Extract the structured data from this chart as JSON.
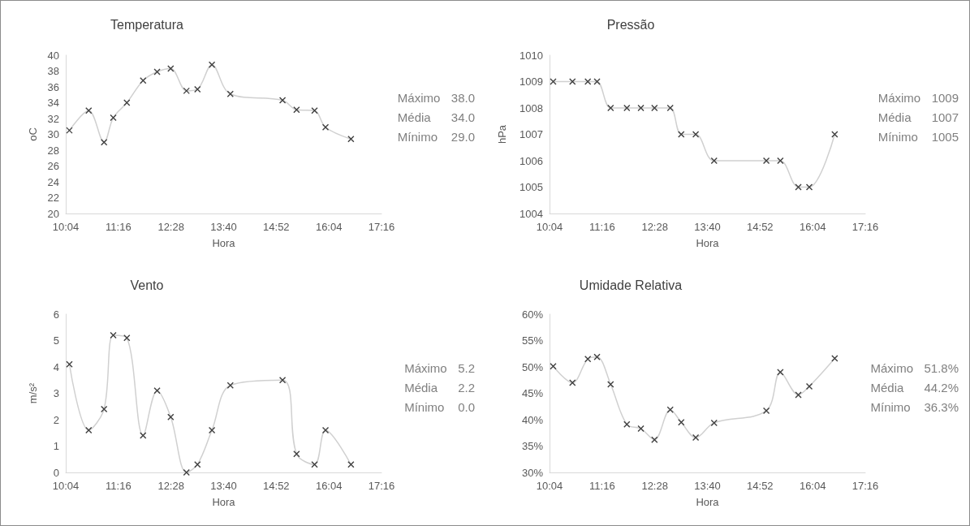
{
  "chart_data": [
    {
      "type": "line",
      "title": "Temperatura",
      "xlabel": "Hora",
      "ylabel": "oC",
      "x": [
        10.15,
        10.59,
        10.94,
        11.15,
        11.46,
        11.83,
        12.15,
        12.46,
        12.82,
        13.07,
        13.4,
        13.82,
        15.01,
        15.33,
        15.74,
        15.99,
        16.57
      ],
      "series": [
        {
          "color": "#d0d0d0",
          "values": [
            30.5,
            33.0,
            29.0,
            32.1,
            34.0,
            36.8,
            37.9,
            38.3,
            35.5,
            35.7,
            38.8,
            35.1,
            34.3,
            33.1,
            33.0,
            30.9,
            29.4
          ]
        }
      ],
      "xlim": [
        10.0667,
        17.2667
      ],
      "xticks": [
        {
          "value": 10.0667,
          "label": "10:04"
        },
        {
          "value": 11.2667,
          "label": "11:16"
        },
        {
          "value": 12.4667,
          "label": "12:28"
        },
        {
          "value": 13.6667,
          "label": "13:40"
        },
        {
          "value": 14.8667,
          "label": "14:52"
        },
        {
          "value": 16.0667,
          "label": "16:04"
        },
        {
          "value": 17.2667,
          "label": "17:16"
        }
      ],
      "ylim": [
        20,
        40
      ],
      "yticks": [
        20,
        22,
        24,
        26,
        28,
        30,
        32,
        34,
        36,
        38,
        40
      ],
      "annotations": [
        "Máximo 38.0",
        "Média 34.0",
        "Mínimo 29.0"
      ],
      "grid": false,
      "marker": "cross",
      "line_style": "solid"
    },
    {
      "type": "line",
      "title": "Pressão",
      "xlabel": "Hora",
      "ylabel": "hPa",
      "x": [
        10.15,
        10.59,
        10.94,
        11.15,
        11.46,
        11.83,
        12.15,
        12.46,
        12.82,
        13.07,
        13.4,
        13.82,
        15.01,
        15.33,
        15.74,
        15.99,
        16.57
      ],
      "series": [
        {
          "color": "#d0d0d0",
          "values": [
            1009,
            1009,
            1009,
            1009,
            1008,
            1008,
            1008,
            1008,
            1008,
            1007,
            1007,
            1006,
            1006,
            1006,
            1005,
            1005,
            1007
          ]
        }
      ],
      "xlim": [
        10.0667,
        17.2667
      ],
      "xticks": [
        {
          "value": 10.0667,
          "label": "10:04"
        },
        {
          "value": 11.2667,
          "label": "11:16"
        },
        {
          "value": 12.4667,
          "label": "12:28"
        },
        {
          "value": 13.6667,
          "label": "13:40"
        },
        {
          "value": 14.8667,
          "label": "14:52"
        },
        {
          "value": 16.0667,
          "label": "16:04"
        },
        {
          "value": 17.2667,
          "label": "17:16"
        }
      ],
      "ylim": [
        1004,
        1010
      ],
      "yticks": [
        1004,
        1005,
        1006,
        1007,
        1008,
        1009,
        1010
      ],
      "annotations": [
        "Máximo 1009",
        "Média 1007",
        "Mínimo 1005"
      ],
      "grid": false,
      "marker": "cross",
      "line_style": "solid"
    },
    {
      "type": "line",
      "title": "Vento",
      "xlabel": "Hora",
      "ylabel": "m/s²",
      "x": [
        10.15,
        10.59,
        10.94,
        11.15,
        11.46,
        11.83,
        12.15,
        12.46,
        12.82,
        13.07,
        13.4,
        13.82,
        15.01,
        15.33,
        15.74,
        15.99,
        16.57
      ],
      "series": [
        {
          "color": "#d0d0d0",
          "values": [
            4.1,
            1.6,
            2.4,
            5.2,
            5.1,
            1.4,
            3.1,
            2.1,
            0.0,
            0.3,
            1.6,
            3.3,
            3.5,
            0.7,
            0.3,
            1.6,
            0.3
          ]
        }
      ],
      "xlim": [
        10.0667,
        17.2667
      ],
      "xticks": [
        {
          "value": 10.0667,
          "label": "10:04"
        },
        {
          "value": 11.2667,
          "label": "11:16"
        },
        {
          "value": 12.4667,
          "label": "12:28"
        },
        {
          "value": 13.6667,
          "label": "13:40"
        },
        {
          "value": 14.8667,
          "label": "14:52"
        },
        {
          "value": 16.0667,
          "label": "16:04"
        },
        {
          "value": 17.2667,
          "label": "17:16"
        }
      ],
      "ylim": [
        0,
        6
      ],
      "yticks": [
        0,
        1,
        2,
        3,
        4,
        5,
        6
      ],
      "annotations": [
        "Máximo 5.2",
        "Média 2.2",
        "Mínimo 0.0"
      ],
      "grid": false,
      "marker": "cross",
      "line_style": "solid"
    },
    {
      "type": "line",
      "title": "Umidade Relativa",
      "xlabel": "Hora",
      "x": [
        10.15,
        10.59,
        10.94,
        11.15,
        11.46,
        11.83,
        12.15,
        12.46,
        12.82,
        13.07,
        13.4,
        13.82,
        15.01,
        15.33,
        15.74,
        15.99,
        16.57
      ],
      "series": [
        {
          "color": "#d0d0d0",
          "values": [
            50.1,
            47.0,
            51.5,
            51.9,
            46.7,
            39.1,
            38.3,
            36.2,
            41.9,
            39.5,
            36.6,
            39.4,
            41.7,
            49.0,
            44.7,
            46.3,
            51.6
          ]
        }
      ],
      "xlim": [
        10.0667,
        17.2667
      ],
      "xticks": [
        {
          "value": 10.0667,
          "label": "10:04"
        },
        {
          "value": 11.2667,
          "label": "11:16"
        },
        {
          "value": 12.4667,
          "label": "12:28"
        },
        {
          "value": 13.6667,
          "label": "13:40"
        },
        {
          "value": 14.8667,
          "label": "14:52"
        },
        {
          "value": 16.0667,
          "label": "16:04"
        },
        {
          "value": 17.2667,
          "label": "17:16"
        }
      ],
      "ylim": [
        30,
        60
      ],
      "yticks": [
        {
          "value": 30,
          "label": "30%"
        },
        {
          "value": 35,
          "label": "35%"
        },
        {
          "value": 40,
          "label": "40%"
        },
        {
          "value": 45,
          "label": "45%"
        },
        {
          "value": 50,
          "label": "50%"
        },
        {
          "value": 55,
          "label": "55%"
        },
        {
          "value": 60,
          "label": "60%"
        }
      ],
      "annotations": [
        "Máximo 51.8%",
        "Média 44.2%",
        "Mínimo 36.3%"
      ],
      "grid": false,
      "marker": "cross",
      "line_style": "solid"
    }
  ]
}
